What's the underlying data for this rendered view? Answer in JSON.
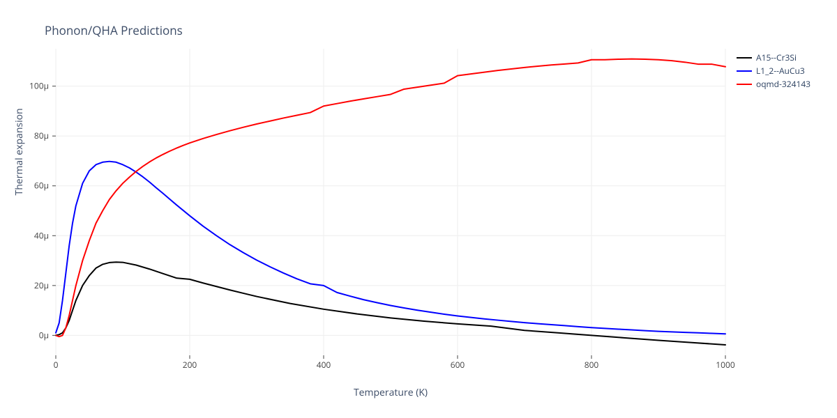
{
  "title": "Phonon/QHA Predictions",
  "chart": {
    "type": "line",
    "xlabel": "Temperature (K)",
    "ylabel": "Thermal expansion",
    "background_color": "#ffffff",
    "grid_color": "#eeeeee",
    "axis_line_color": "#444444",
    "tick_font_color": "#444444",
    "tick_fontsize": 12,
    "label_fontsize": 14,
    "title_fontsize": 17,
    "line_width": 2,
    "xlim": [
      0,
      1000
    ],
    "ylim": [
      -8,
      115
    ],
    "xticks": [
      0,
      200,
      400,
      600,
      800,
      1000
    ],
    "yticks": [
      0,
      20,
      40,
      60,
      80,
      100
    ],
    "ytick_suffix": "μ",
    "series": [
      {
        "name": "A15--Cr3Si",
        "color": "#000000",
        "data": [
          [
            0,
            0
          ],
          [
            5,
            0.3
          ],
          [
            10,
            1
          ],
          [
            15,
            3
          ],
          [
            20,
            6
          ],
          [
            25,
            10
          ],
          [
            30,
            14
          ],
          [
            40,
            20
          ],
          [
            50,
            24
          ],
          [
            60,
            27
          ],
          [
            70,
            28.5
          ],
          [
            80,
            29.2
          ],
          [
            90,
            29.4
          ],
          [
            100,
            29.3
          ],
          [
            120,
            28.2
          ],
          [
            140,
            26.6
          ],
          [
            160,
            24.8
          ],
          [
            180,
            23.0
          ],
          [
            200,
            22.5
          ],
          [
            220,
            21.0
          ],
          [
            240,
            19.6
          ],
          [
            260,
            18.2
          ],
          [
            280,
            16.9
          ],
          [
            300,
            15.6
          ],
          [
            350,
            12.8
          ],
          [
            400,
            10.5
          ],
          [
            450,
            8.6
          ],
          [
            500,
            7.0
          ],
          [
            550,
            5.7
          ],
          [
            600,
            4.6
          ],
          [
            650,
            3.7
          ],
          [
            700,
            2.0
          ],
          [
            750,
            1.0
          ],
          [
            800,
            0.0
          ],
          [
            850,
            -1.0
          ],
          [
            900,
            -2.0
          ],
          [
            950,
            -2.9
          ],
          [
            1000,
            -3.8
          ]
        ]
      },
      {
        "name": "L1_2--AuCu3",
        "color": "#0000FF",
        "data": [
          [
            0,
            1
          ],
          [
            5,
            5
          ],
          [
            10,
            14
          ],
          [
            15,
            25
          ],
          [
            20,
            36
          ],
          [
            25,
            45
          ],
          [
            30,
            52
          ],
          [
            40,
            61
          ],
          [
            50,
            66
          ],
          [
            60,
            68.5
          ],
          [
            70,
            69.5
          ],
          [
            80,
            69.8
          ],
          [
            90,
            69.5
          ],
          [
            100,
            68.5
          ],
          [
            110,
            67.2
          ],
          [
            120,
            65.5
          ],
          [
            130,
            63.6
          ],
          [
            140,
            61.5
          ],
          [
            150,
            59.2
          ],
          [
            160,
            57.0
          ],
          [
            170,
            54.7
          ],
          [
            180,
            52.4
          ],
          [
            190,
            50.2
          ],
          [
            200,
            48.0
          ],
          [
            220,
            43.8
          ],
          [
            240,
            40.0
          ],
          [
            260,
            36.4
          ],
          [
            280,
            33.2
          ],
          [
            300,
            30.2
          ],
          [
            320,
            27.5
          ],
          [
            340,
            25.0
          ],
          [
            360,
            22.7
          ],
          [
            380,
            20.7
          ],
          [
            400,
            20.0
          ],
          [
            420,
            17.2
          ],
          [
            440,
            15.7
          ],
          [
            460,
            14.3
          ],
          [
            480,
            13.1
          ],
          [
            500,
            12.0
          ],
          [
            520,
            11.0
          ],
          [
            540,
            10.1
          ],
          [
            560,
            9.3
          ],
          [
            580,
            8.5
          ],
          [
            600,
            7.8
          ],
          [
            620,
            7.2
          ],
          [
            640,
            6.6
          ],
          [
            660,
            6.1
          ],
          [
            680,
            5.6
          ],
          [
            700,
            5.1
          ],
          [
            720,
            4.7
          ],
          [
            740,
            4.3
          ],
          [
            760,
            3.9
          ],
          [
            780,
            3.5
          ],
          [
            800,
            3.1
          ],
          [
            820,
            2.8
          ],
          [
            840,
            2.5
          ],
          [
            860,
            2.2
          ],
          [
            880,
            1.9
          ],
          [
            900,
            1.6
          ],
          [
            920,
            1.4
          ],
          [
            940,
            1.2
          ],
          [
            960,
            1.0
          ],
          [
            980,
            0.8
          ],
          [
            1000,
            0.6
          ]
        ]
      },
      {
        "name": "oqmd-324143",
        "color": "#FF0000",
        "data": [
          [
            0,
            0
          ],
          [
            5,
            -0.5
          ],
          [
            10,
            0
          ],
          [
            15,
            3
          ],
          [
            20,
            8
          ],
          [
            25,
            14
          ],
          [
            30,
            20
          ],
          [
            40,
            30
          ],
          [
            50,
            38
          ],
          [
            60,
            45
          ],
          [
            70,
            50
          ],
          [
            80,
            54.5
          ],
          [
            90,
            58
          ],
          [
            100,
            61
          ],
          [
            110,
            63.5
          ],
          [
            120,
            65.8
          ],
          [
            130,
            67.8
          ],
          [
            140,
            69.6
          ],
          [
            150,
            71.2
          ],
          [
            160,
            72.6
          ],
          [
            170,
            73.9
          ],
          [
            180,
            75.1
          ],
          [
            190,
            76.2
          ],
          [
            200,
            77.2
          ],
          [
            220,
            79.0
          ],
          [
            240,
            80.6
          ],
          [
            260,
            82.1
          ],
          [
            280,
            83.5
          ],
          [
            300,
            84.8
          ],
          [
            320,
            86.0
          ],
          [
            340,
            87.2
          ],
          [
            360,
            88.3
          ],
          [
            380,
            89.4
          ],
          [
            400,
            92.0
          ],
          [
            420,
            93.0
          ],
          [
            440,
            94.0
          ],
          [
            460,
            94.9
          ],
          [
            480,
            95.8
          ],
          [
            500,
            96.7
          ],
          [
            520,
            98.8
          ],
          [
            540,
            99.6
          ],
          [
            560,
            100.4
          ],
          [
            580,
            101.2
          ],
          [
            600,
            104.2
          ],
          [
            620,
            104.9
          ],
          [
            640,
            105.6
          ],
          [
            660,
            106.3
          ],
          [
            680,
            106.9
          ],
          [
            700,
            107.5
          ],
          [
            720,
            108.0
          ],
          [
            740,
            108.5
          ],
          [
            760,
            108.9
          ],
          [
            780,
            109.3
          ],
          [
            800,
            110.6
          ],
          [
            820,
            110.6
          ],
          [
            840,
            110.8
          ],
          [
            860,
            110.9
          ],
          [
            880,
            110.8
          ],
          [
            900,
            110.6
          ],
          [
            920,
            110.2
          ],
          [
            940,
            109.6
          ],
          [
            960,
            108.8
          ],
          [
            980,
            108.8
          ],
          [
            1000,
            107.8
          ]
        ]
      }
    ]
  }
}
